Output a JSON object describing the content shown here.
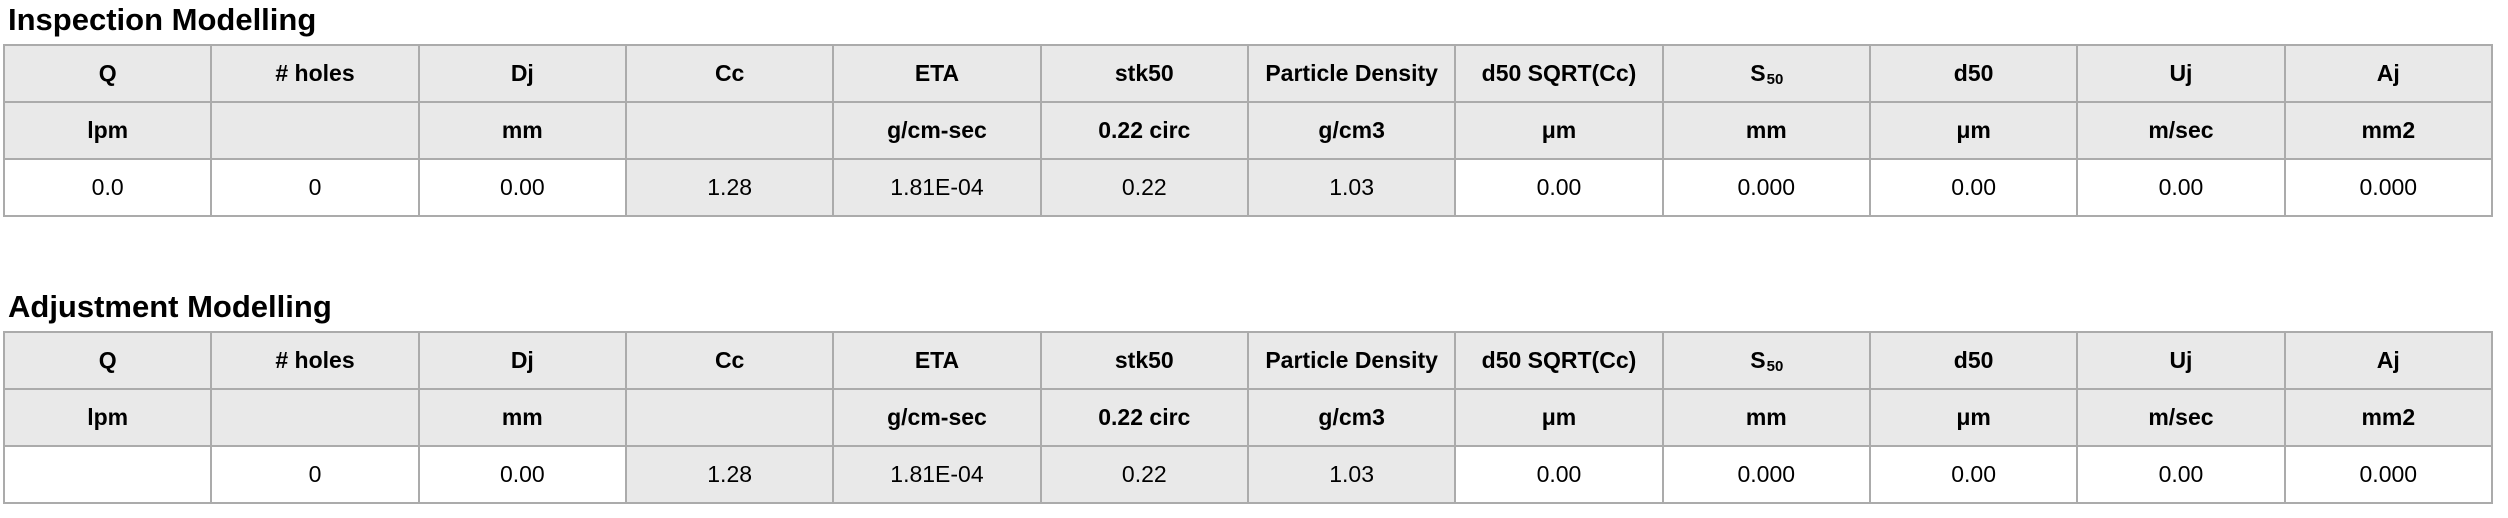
{
  "colors": {
    "cell_gray": "#e9e9e9",
    "border_inner": "#ababab",
    "border_outer": "#8f8f8f",
    "text": "#000000",
    "page_bg": "#ffffff"
  },
  "tables": [
    {
      "title": "Inspection Modelling",
      "columns": [
        {
          "header": "Q",
          "unit": "lpm"
        },
        {
          "header": "# holes",
          "unit": ""
        },
        {
          "header": "Dj",
          "unit": "mm"
        },
        {
          "header": "Cc",
          "unit": ""
        },
        {
          "header": "ETA",
          "unit": "g/cm-sec"
        },
        {
          "header": "stk50",
          "unit": "0.22 circ"
        },
        {
          "header": "Particle Density",
          "unit": "g/cm3"
        },
        {
          "header": "d50 SQRT(Cc)",
          "unit": "μm"
        },
        {
          "header": "S",
          "header_sub": "50",
          "unit": "mm"
        },
        {
          "header": "d50",
          "unit": "μm"
        },
        {
          "header": "Uj",
          "unit": "m/sec"
        },
        {
          "header": "Aj",
          "unit": "mm2"
        }
      ],
      "values": [
        "0.0",
        "0",
        "0.00",
        "1.28",
        "1.81E-04",
        "0.22",
        "1.03",
        "0.00",
        "0.000",
        "0.00",
        "0.00",
        "0.000"
      ],
      "value_shaded": [
        false,
        false,
        false,
        true,
        true,
        true,
        true,
        false,
        false,
        false,
        false,
        false
      ]
    },
    {
      "title": "Adjustment Modelling",
      "columns": [
        {
          "header": "Q",
          "unit": "lpm"
        },
        {
          "header": "# holes",
          "unit": ""
        },
        {
          "header": "Dj",
          "unit": "mm"
        },
        {
          "header": "Cc",
          "unit": ""
        },
        {
          "header": "ETA",
          "unit": "g/cm-sec"
        },
        {
          "header": "stk50",
          "unit": "0.22 circ"
        },
        {
          "header": "Particle Density",
          "unit": "g/cm3"
        },
        {
          "header": "d50 SQRT(Cc)",
          "unit": "μm"
        },
        {
          "header": "S",
          "header_sub": "50",
          "unit": "mm"
        },
        {
          "header": "d50",
          "unit": "μm"
        },
        {
          "header": "Uj",
          "unit": "m/sec"
        },
        {
          "header": "Aj",
          "unit": "mm2"
        }
      ],
      "values": [
        "",
        "0",
        "0.00",
        "1.28",
        "1.81E-04",
        "0.22",
        "1.03",
        "0.00",
        "0.000",
        "0.00",
        "0.00",
        "0.000"
      ],
      "value_shaded": [
        false,
        false,
        false,
        true,
        true,
        true,
        true,
        false,
        false,
        false,
        false,
        false
      ]
    }
  ]
}
